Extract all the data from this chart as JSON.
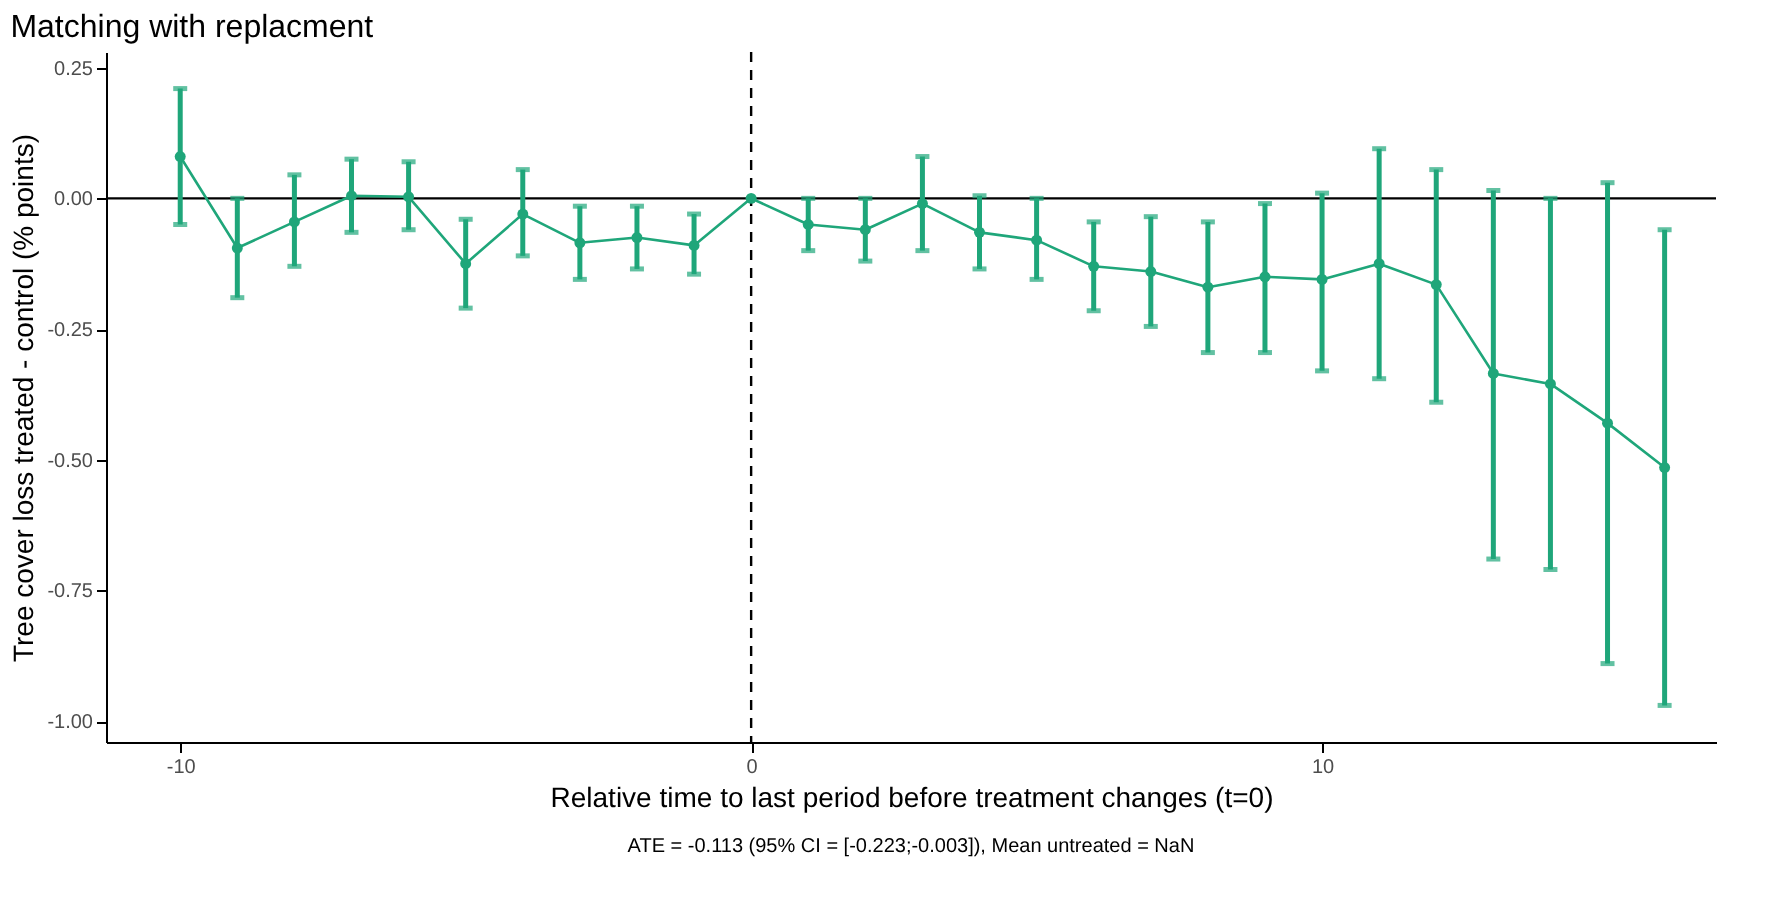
{
  "chart_data": {
    "type": "line",
    "title": "Matching with replacment",
    "xlabel": "Relative time to last period before treatment changes (t=0)",
    "ylabel": "Tree cover loss treated - control (% points)",
    "annotations": [
      "ATE = -0.113 (95% CI = [-0.223;-0.003]), Mean untreated = NaN"
    ],
    "x": [
      -10,
      -9,
      -8,
      -7,
      -6,
      -5,
      -4,
      -3,
      -2,
      -1,
      0,
      1,
      2,
      3,
      4,
      5,
      6,
      7,
      8,
      9,
      10,
      11,
      12,
      13,
      14,
      15,
      16
    ],
    "series": [
      {
        "color": "#1fa67a",
        "values": [
          0.08,
          -0.095,
          -0.045,
          0.005,
          0.003,
          -0.125,
          -0.03,
          -0.085,
          -0.075,
          -0.09,
          0,
          -0.05,
          -0.06,
          -0.01,
          -0.065,
          -0.08,
          -0.13,
          -0.14,
          -0.17,
          -0.15,
          -0.155,
          -0.125,
          -0.165,
          -0.335,
          -0.355,
          -0.43,
          -0.515
        ],
        "errors": [
          [
            -0.05,
            0.21
          ],
          [
            -0.19,
            0.0
          ],
          [
            -0.13,
            0.045
          ],
          [
            -0.065,
            0.075
          ],
          [
            -0.06,
            0.07
          ],
          [
            -0.21,
            -0.04
          ],
          [
            -0.11,
            0.055
          ],
          [
            -0.155,
            -0.015
          ],
          [
            -0.135,
            -0.015
          ],
          [
            -0.145,
            -0.03
          ],
          null,
          [
            -0.1,
            0.0
          ],
          [
            -0.12,
            0.0
          ],
          [
            -0.1,
            0.08
          ],
          [
            -0.135,
            0.005
          ],
          [
            -0.155,
            0.0
          ],
          [
            -0.215,
            -0.045
          ],
          [
            -0.245,
            -0.035
          ],
          [
            -0.295,
            -0.045
          ],
          [
            -0.295,
            -0.01
          ],
          [
            -0.33,
            0.01
          ],
          [
            -0.345,
            0.095
          ],
          [
            -0.39,
            0.055
          ],
          [
            -0.69,
            0.015
          ],
          [
            -0.71,
            0.0
          ],
          [
            -0.89,
            0.03
          ],
          [
            -0.97,
            -0.06
          ]
        ]
      }
    ],
    "xlim": [
      -11.3,
      16.9
    ],
    "xticks": [
      -10,
      0,
      10
    ],
    "ylim": [
      -1.04,
      0.28
    ],
    "yticks": [
      {
        "value": 0.25,
        "label": "0.25"
      },
      {
        "value": 0,
        "label": "0.00"
      },
      {
        "value": -0.25,
        "label": "-0.25"
      },
      {
        "value": -0.5,
        "label": "-0.50"
      },
      {
        "value": -0.75,
        "label": "-0.75"
      },
      {
        "value": -1,
        "label": "-1.00"
      }
    ],
    "ref_lines": [
      {
        "axis": "y",
        "value": 0,
        "color": "#000000",
        "line_style": "solid"
      },
      {
        "axis": "x",
        "value": 0,
        "color": "#000000",
        "line_style": "dashed"
      }
    ],
    "grid": false,
    "marker": "circle",
    "line_style": "solid"
  }
}
